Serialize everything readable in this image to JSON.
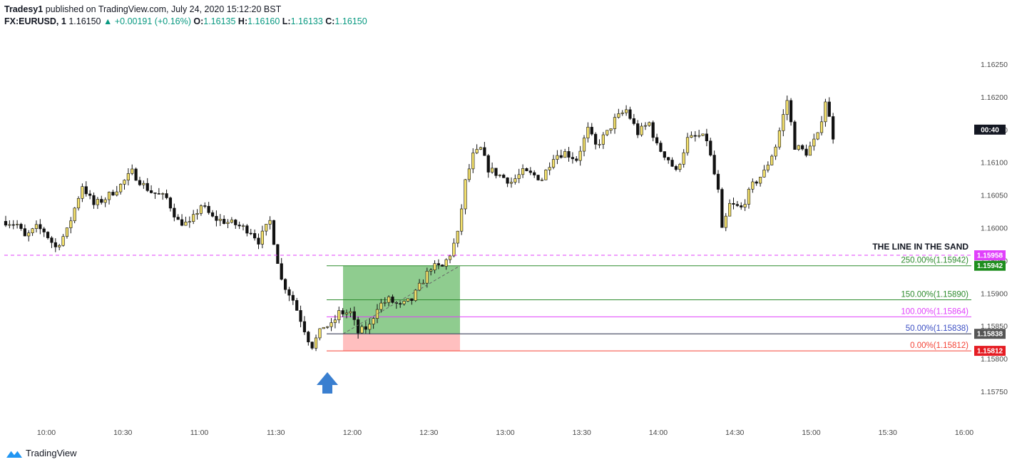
{
  "header": {
    "author": "Tradesy1",
    "published": " published on TradingView.com, July 24, 2020 15:12:20 BST",
    "symbol": "FX:EURUSD, 1",
    "last": "1.16150",
    "change": "+0.00191 (+0.16%)",
    "o_label": "O:",
    "o_value": "1.16135",
    "h_label": "H:",
    "h_value": "1.16160",
    "l_label": "L:",
    "l_value": "1.16133",
    "c_label": "C:",
    "c_value": "1.16150"
  },
  "brand": {
    "name": "TradingView"
  },
  "chart_data": {
    "type": "candlestick",
    "title": "",
    "x_ticks": [
      "10:00",
      "10:30",
      "11:00",
      "11:30",
      "12:00",
      "12:30",
      "13:00",
      "13:30",
      "14:00",
      "14:30",
      "15:00",
      "15:30",
      "16:00"
    ],
    "y_ticks": [
      "1.16250",
      "1.16200",
      "1.16150",
      "1.16100",
      "1.16050",
      "1.16000",
      "1.15950",
      "1.15900",
      "1.15850",
      "1.15800",
      "1.15750"
    ],
    "ylim": [
      1.1573,
      1.1628
    ],
    "price_path": [
      [
        0,
        1.1601
      ],
      [
        3,
        1.16005
      ],
      [
        5,
        1.15985
      ],
      [
        8,
        1.16
      ],
      [
        10,
        1.15995
      ],
      [
        13,
        1.1597
      ],
      [
        16,
        1.15995
      ],
      [
        20,
        1.16065
      ],
      [
        23,
        1.16035
      ],
      [
        26,
        1.16045
      ],
      [
        30,
        1.16065
      ],
      [
        33,
        1.16085
      ],
      [
        36,
        1.16065
      ],
      [
        38,
        1.16055
      ],
      [
        42,
        1.16045
      ],
      [
        45,
        1.1601
      ],
      [
        48,
        1.16005
      ],
      [
        51,
        1.16035
      ],
      [
        54,
        1.16015
      ],
      [
        57,
        1.1601
      ],
      [
        60,
        1.16005
      ],
      [
        64,
        1.15995
      ],
      [
        66,
        1.1598
      ],
      [
        69,
        1.1601
      ],
      [
        72,
        1.1592
      ],
      [
        75,
        1.1589
      ],
      [
        77,
        1.1586
      ],
      [
        79,
        1.1583
      ],
      [
        80,
        1.1582
      ],
      [
        81,
        1.1583
      ],
      [
        83,
        1.1585
      ],
      [
        85,
        1.1585
      ],
      [
        87,
        1.1587
      ],
      [
        90,
        1.1587
      ],
      [
        92,
        1.1584
      ],
      [
        95,
        1.1585
      ],
      [
        97,
        1.1588
      ],
      [
        100,
        1.1589
      ],
      [
        103,
        1.1588
      ],
      [
        106,
        1.1589
      ],
      [
        109,
        1.1592
      ],
      [
        111,
        1.1594
      ],
      [
        114,
        1.1594
      ],
      [
        116,
        1.1596
      ],
      [
        118,
        1.1599
      ],
      [
        120,
        1.1607
      ],
      [
        122,
        1.1611
      ],
      [
        124,
        1.1612
      ],
      [
        126,
        1.1609
      ],
      [
        129,
        1.1608
      ],
      [
        132,
        1.1607
      ],
      [
        135,
        1.16085
      ],
      [
        138,
        1.1608
      ],
      [
        140,
        1.16075
      ],
      [
        143,
        1.1611
      ],
      [
        146,
        1.16115
      ],
      [
        149,
        1.16105
      ],
      [
        152,
        1.1615
      ],
      [
        154,
        1.16125
      ],
      [
        157,
        1.16145
      ],
      [
        159,
        1.16165
      ],
      [
        162,
        1.1618
      ],
      [
        165,
        1.16145
      ],
      [
        168,
        1.1616
      ],
      [
        170,
        1.16125
      ],
      [
        173,
        1.16105
      ],
      [
        175,
        1.16085
      ],
      [
        178,
        1.16135
      ],
      [
        181,
        1.1614
      ],
      [
        183,
        1.16135
      ],
      [
        186,
        1.16055
      ],
      [
        187,
        1.15995
      ],
      [
        189,
        1.16035
      ],
      [
        192,
        1.1603
      ],
      [
        195,
        1.16065
      ],
      [
        198,
        1.16085
      ],
      [
        201,
        1.16125
      ],
      [
        204,
        1.16195
      ],
      [
        206,
        1.16125
      ],
      [
        209,
        1.16115
      ],
      [
        212,
        1.1614
      ],
      [
        214,
        1.16195
      ],
      [
        216,
        1.1614
      ]
    ],
    "annotations": {
      "horizontal_line": {
        "label": "THE LINE IN THE SAND",
        "price": 1.15958,
        "tag": "1.15958"
      },
      "position_tag": "1.15942",
      "fib_levels": [
        {
          "label": "250.00%(1.15942)",
          "price": 1.15942
        },
        {
          "label": "150.00%(1.15890)",
          "price": 1.1589
        },
        {
          "label": "100.00%(1.15864)",
          "price": 1.15864
        },
        {
          "label": "50.00%(1.15838)",
          "price": 1.15838
        },
        {
          "label": "0.00%(1.15812)",
          "price": 1.15812
        }
      ],
      "entry_tag": "1.15838",
      "stop_tag": "1.15812",
      "countdown": "00:40",
      "colors": {
        "profit": "#8fcc8f",
        "loss": "#ffbfbf",
        "fib250": "#2e8b2e",
        "fib150": "#2e8b2e",
        "fib100": "#e040fb",
        "fib50": "#3c4fc4",
        "fib0": "#f44336",
        "line": "#e040fb",
        "arrow": "#3a7fd0"
      }
    }
  }
}
